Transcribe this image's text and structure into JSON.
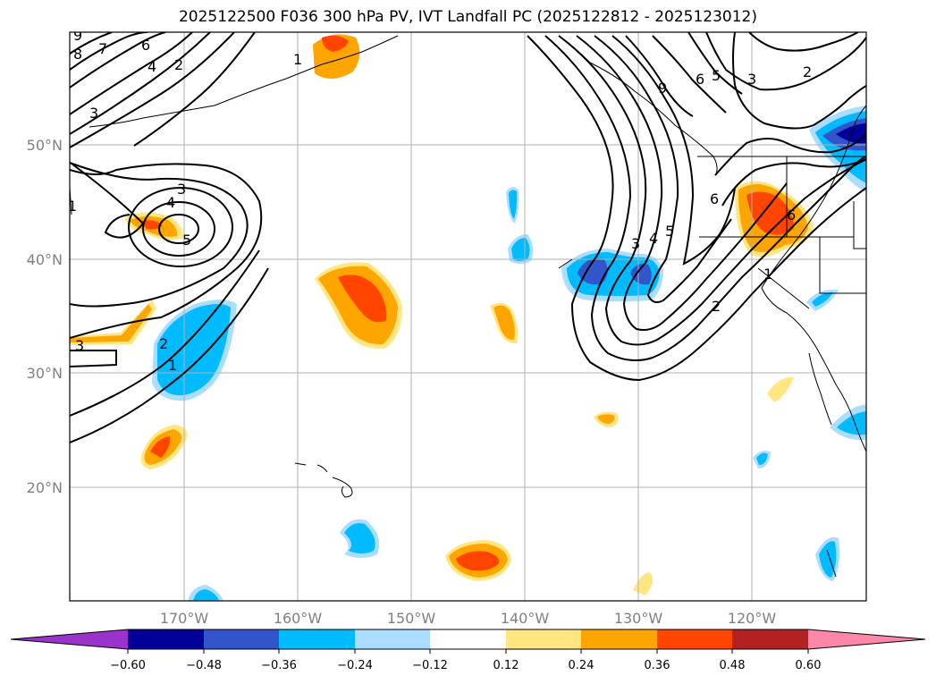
{
  "title": "2025122500 F036 300 hPa PV, IVT Landfall PC (2025122812 - 2025123012)",
  "map": {
    "lat_labels": [
      "50°N",
      "40°N",
      "30°N",
      "20°N"
    ],
    "lon_labels": [
      "170°W",
      "160°W",
      "150°W",
      "140°W",
      "130°W",
      "120°W"
    ],
    "pv_contour_labels": [
      "9",
      "8",
      "7",
      "6",
      "4",
      "2",
      "1",
      "3",
      "3",
      "4",
      "5",
      "3",
      "2",
      "1",
      "3",
      "4",
      "5",
      "6",
      "2",
      "1",
      "9",
      "6",
      "5",
      "3",
      "2",
      "6",
      "1"
    ]
  },
  "colorbar": {
    "tick_labels": [
      "−0.60",
      "−0.48",
      "−0.36",
      "−0.24",
      "−0.12",
      "0.12",
      "0.24",
      "0.36",
      "0.48",
      "0.60"
    ],
    "colors": [
      "#9933cc",
      "#000099",
      "#3355cc",
      "#00bbff",
      "#aaddff",
      "#ffffff",
      "#ffe680",
      "#ffa500",
      "#ff4500",
      "#b22222",
      "#ff88aa"
    ]
  }
}
